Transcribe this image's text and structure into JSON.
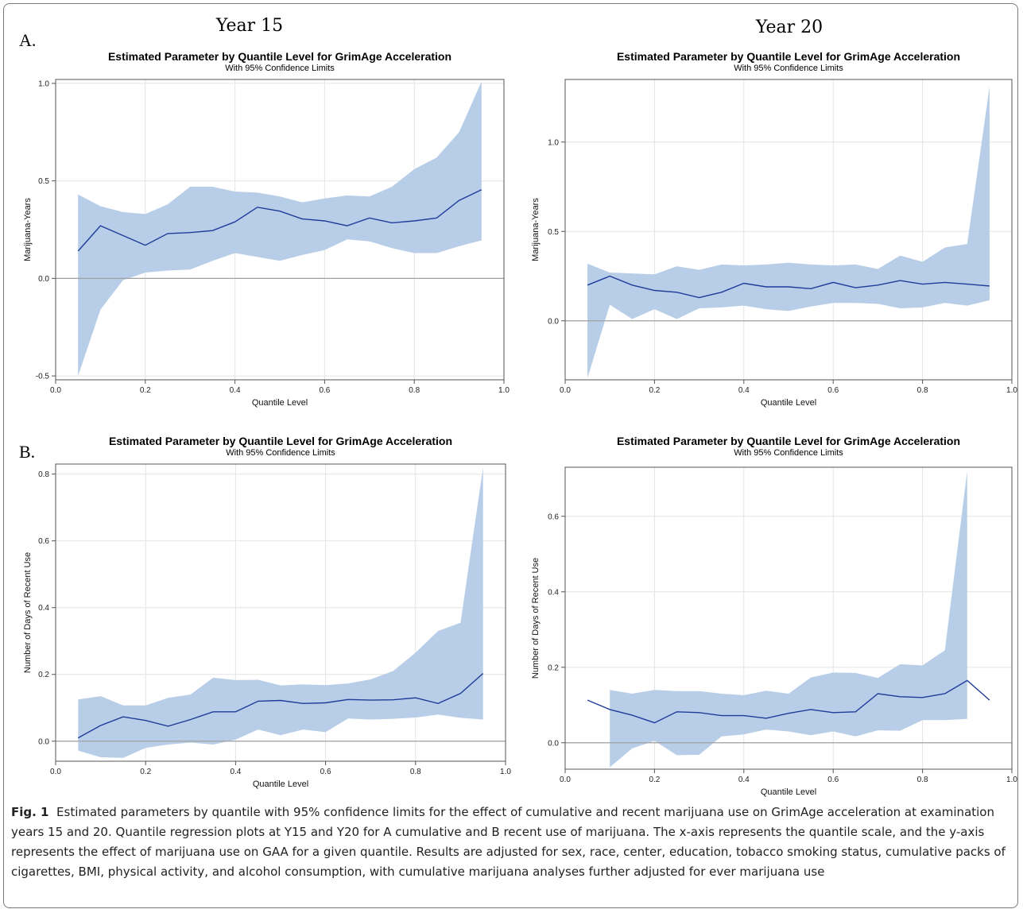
{
  "columns": {
    "left": "Year 15",
    "right": "Year 20"
  },
  "panels": {
    "a": "A.",
    "b": "B."
  },
  "caption": {
    "fig_label": "Fig. 1",
    "text": "Estimated parameters by quantile with 95% confidence limits for the effect of cumulative and recent marijuana use on GrimAge acceleration at examination years 15 and 20. Quantile regression plots at Y15 and Y20 for A cumulative and B recent use of marijuana. The x-axis represents the quantile scale, and the y-axis represents the effect of marijuana use on GAA for a given quantile. Results are adjusted for sex, race, center, education, tobacco smoking status, cumulative packs of cigarettes, BMI, physical activity, and alcohol consumption, with cumulative marijuana analyses further adjusted for ever marijuana use"
  },
  "colors": {
    "band": "#b8cee8",
    "line": "#1f3c9a",
    "zero": "#a0a0a0",
    "grid": "#e4e4e4",
    "axis": "#555555"
  },
  "chart_data": [
    {
      "type": "line",
      "title": "Estimated Parameter by Quantile Level for GrimAge Acceleration",
      "subtitle": "With 95% Confidence Limits",
      "xlabel": "Quantile Level",
      "ylabel": "Marijuana-Years",
      "xlim": [
        0.0,
        1.0
      ],
      "ylim": [
        -0.52,
        1.02
      ],
      "xticks": [
        "0.0",
        "0.2",
        "0.4",
        "0.6",
        "0.8",
        "1.0"
      ],
      "yticks": [
        "-0.5",
        "0.0",
        "0.5",
        "1.0"
      ],
      "x": [
        0.05,
        0.1,
        0.15,
        0.2,
        0.25,
        0.3,
        0.35,
        0.4,
        0.45,
        0.5,
        0.55,
        0.6,
        0.65,
        0.7,
        0.75,
        0.8,
        0.85,
        0.9,
        0.95
      ],
      "series": [
        {
          "role": "estimate",
          "values": [
            0.14,
            0.27,
            0.22,
            0.17,
            0.23,
            0.235,
            0.245,
            0.29,
            0.365,
            0.345,
            0.305,
            0.295,
            0.27,
            0.31,
            0.285,
            0.295,
            0.31,
            0.4,
            0.455
          ]
        },
        {
          "role": "lower",
          "values": [
            -0.5,
            -0.16,
            -0.01,
            0.03,
            0.04,
            0.045,
            0.09,
            0.13,
            0.11,
            0.09,
            0.12,
            0.145,
            0.2,
            0.19,
            0.155,
            0.13,
            0.13,
            0.165,
            0.195
          ]
        },
        {
          "role": "upper",
          "values": [
            0.43,
            0.37,
            0.34,
            0.33,
            0.38,
            0.47,
            0.47,
            0.445,
            0.44,
            0.42,
            0.39,
            0.41,
            0.425,
            0.42,
            0.47,
            0.56,
            0.62,
            0.75,
            1.01
          ]
        }
      ]
    },
    {
      "type": "line",
      "title": "Estimated Parameter by Quantile Level for GrimAge Acceleration",
      "subtitle": "With 95% Confidence Limits",
      "xlabel": "Quantile Level",
      "ylabel": "Marijuana-Years",
      "xlim": [
        0.0,
        1.0
      ],
      "ylim": [
        -0.33,
        1.35
      ],
      "xticks": [
        "0.0",
        "0.2",
        "0.4",
        "0.6",
        "0.8",
        "1.0"
      ],
      "yticks": [
        "0.0",
        "0.5",
        "1.0"
      ],
      "x": [
        0.05,
        0.1,
        0.15,
        0.2,
        0.25,
        0.3,
        0.35,
        0.4,
        0.45,
        0.5,
        0.55,
        0.6,
        0.65,
        0.7,
        0.75,
        0.8,
        0.85,
        0.9,
        0.95
      ],
      "series": [
        {
          "role": "estimate",
          "values": [
            0.2,
            0.25,
            0.2,
            0.17,
            0.16,
            0.13,
            0.16,
            0.21,
            0.19,
            0.19,
            0.18,
            0.215,
            0.185,
            0.2,
            0.225,
            0.205,
            0.215,
            0.205,
            0.195
          ]
        },
        {
          "role": "lower",
          "values": [
            -0.32,
            0.09,
            0.01,
            0.065,
            0.01,
            0.07,
            0.075,
            0.085,
            0.065,
            0.055,
            0.08,
            0.1,
            0.1,
            0.095,
            0.07,
            0.075,
            0.1,
            0.085,
            0.115
          ]
        },
        {
          "role": "upper",
          "values": [
            0.32,
            0.27,
            0.265,
            0.26,
            0.305,
            0.285,
            0.315,
            0.31,
            0.315,
            0.325,
            0.315,
            0.31,
            0.315,
            0.29,
            0.365,
            0.33,
            0.41,
            0.43,
            1.31
          ]
        }
      ]
    },
    {
      "type": "line",
      "title": "Estimated Parameter by Quantile Level for GrimAge Acceleration",
      "subtitle": "With 95% Confidence Limits",
      "xlabel": "Quantile Level",
      "ylabel": "Number of Days of Recent Use",
      "xlim": [
        0.0,
        1.0
      ],
      "ylim": [
        -0.06,
        0.83
      ],
      "xticks": [
        "0.0",
        "0.2",
        "0.4",
        "0.6",
        "0.8",
        "1.0"
      ],
      "yticks": [
        "0.0",
        "0.2",
        "0.4",
        "0.6",
        "0.8"
      ],
      "x": [
        0.05,
        0.1,
        0.15,
        0.2,
        0.25,
        0.3,
        0.35,
        0.4,
        0.45,
        0.5,
        0.55,
        0.6,
        0.65,
        0.7,
        0.75,
        0.8,
        0.85,
        0.9,
        0.95
      ],
      "series": [
        {
          "role": "estimate",
          "values": [
            0.01,
            0.047,
            0.073,
            0.062,
            0.045,
            0.065,
            0.088,
            0.088,
            0.12,
            0.122,
            0.113,
            0.115,
            0.125,
            0.123,
            0.124,
            0.13,
            0.113,
            0.143,
            0.203
          ]
        },
        {
          "role": "lower",
          "values": [
            -0.028,
            -0.048,
            -0.05,
            -0.02,
            -0.01,
            -0.004,
            -0.01,
            0.005,
            0.035,
            0.018,
            0.035,
            0.027,
            0.068,
            0.065,
            0.067,
            0.071,
            0.08,
            0.07,
            0.065
          ]
        },
        {
          "role": "upper",
          "values": [
            0.125,
            0.135,
            0.107,
            0.107,
            0.13,
            0.14,
            0.19,
            0.183,
            0.184,
            0.167,
            0.17,
            0.168,
            0.173,
            0.185,
            0.21,
            0.265,
            0.33,
            0.355,
            0.82
          ]
        }
      ]
    },
    {
      "type": "line",
      "title": "Estimated Parameter by Quantile Level for GrimAge Acceleration",
      "subtitle": "With 95% Confidence Limits",
      "xlabel": "Quantile Level",
      "ylabel": "Number of Days of Recent Use",
      "xlim": [
        0.0,
        1.0
      ],
      "ylim": [
        -0.07,
        0.73
      ],
      "xticks": [
        "0.0",
        "0.2",
        "0.4",
        "0.6",
        "0.8",
        "1.0"
      ],
      "yticks": [
        "0.0",
        "0.2",
        "0.4",
        "0.6"
      ],
      "x": [
        0.05,
        0.1,
        0.15,
        0.2,
        0.25,
        0.3,
        0.35,
        0.4,
        0.45,
        0.5,
        0.55,
        0.6,
        0.65,
        0.7,
        0.75,
        0.8,
        0.85,
        0.9,
        0.95
      ],
      "series": [
        {
          "role": "estimate",
          "values": [
            0.113,
            0.088,
            0.073,
            0.053,
            0.082,
            0.08,
            0.072,
            0.072,
            0.065,
            0.078,
            0.088,
            0.08,
            0.082,
            0.13,
            0.122,
            0.12,
            0.13,
            0.165,
            0.113
          ]
        },
        {
          "role": "lower",
          "values": [
            null,
            -0.065,
            -0.015,
            0.005,
            -0.033,
            -0.032,
            0.017,
            0.022,
            0.035,
            0.03,
            0.02,
            0.03,
            0.017,
            0.033,
            0.032,
            0.06,
            0.06,
            0.063,
            null
          ]
        },
        {
          "role": "upper",
          "values": [
            null,
            0.14,
            0.13,
            0.14,
            0.137,
            0.137,
            0.13,
            0.126,
            0.138,
            0.13,
            0.173,
            0.186,
            0.185,
            0.172,
            0.208,
            0.205,
            0.245,
            0.72,
            null
          ]
        }
      ]
    }
  ]
}
